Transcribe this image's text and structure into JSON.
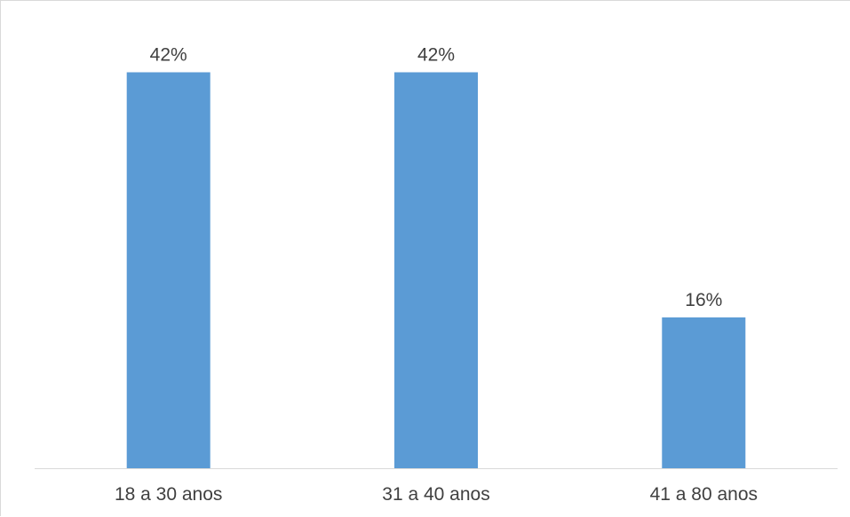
{
  "chart_data": {
    "type": "bar",
    "categories": [
      "18 a 30 anos",
      "31 a 40 anos",
      "41 a 80 anos"
    ],
    "values": [
      42,
      42,
      16
    ],
    "value_labels": [
      "42%",
      "42%",
      "16%"
    ],
    "ylim": [
      0,
      46
    ],
    "grid": false,
    "legend": "none",
    "bar_color": "#5b9bd5",
    "axis_color": "#d9d9d9"
  }
}
